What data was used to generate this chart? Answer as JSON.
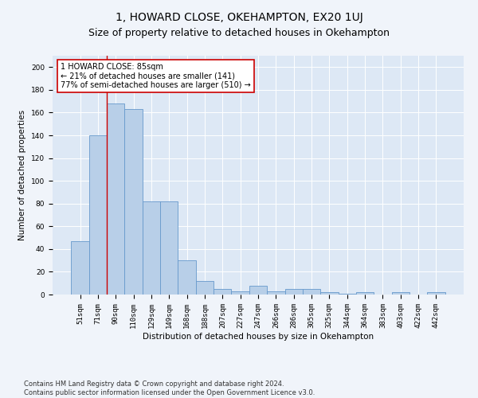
{
  "title": "1, HOWARD CLOSE, OKEHAMPTON, EX20 1UJ",
  "subtitle": "Size of property relative to detached houses in Okehampton",
  "xlabel": "Distribution of detached houses by size in Okehampton",
  "ylabel": "Number of detached properties",
  "categories": [
    "51sqm",
    "71sqm",
    "90sqm",
    "110sqm",
    "129sqm",
    "149sqm",
    "168sqm",
    "188sqm",
    "207sqm",
    "227sqm",
    "247sqm",
    "266sqm",
    "286sqm",
    "305sqm",
    "325sqm",
    "344sqm",
    "364sqm",
    "383sqm",
    "403sqm",
    "422sqm",
    "442sqm"
  ],
  "values": [
    47,
    140,
    168,
    163,
    82,
    82,
    30,
    12,
    5,
    3,
    8,
    3,
    5,
    5,
    2,
    1,
    2,
    0,
    2,
    0,
    2
  ],
  "bar_color": "#b8cfe8",
  "bar_edge_color": "#6699cc",
  "vline_x": 1.5,
  "vline_color": "#cc0000",
  "annotation_text": "1 HOWARD CLOSE: 85sqm\n← 21% of detached houses are smaller (141)\n77% of semi-detached houses are larger (510) →",
  "annotation_box_color": "#ffffff",
  "annotation_box_edge": "#cc0000",
  "ylim": [
    0,
    210
  ],
  "yticks": [
    0,
    20,
    40,
    60,
    80,
    100,
    120,
    140,
    160,
    180,
    200
  ],
  "footer": "Contains HM Land Registry data © Crown copyright and database right 2024.\nContains public sector information licensed under the Open Government Licence v3.0.",
  "bg_color": "#dde8f5",
  "fig_bg_color": "#f0f4fa",
  "title_fontsize": 10,
  "subtitle_fontsize": 9,
  "axis_label_fontsize": 7.5,
  "tick_fontsize": 6.5,
  "footer_fontsize": 6,
  "annotation_fontsize": 7
}
